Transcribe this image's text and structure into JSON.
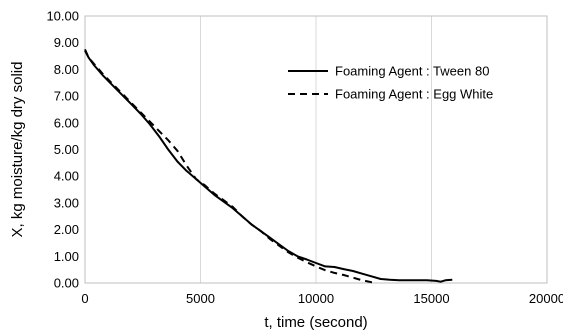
{
  "chart_data": {
    "type": "line",
    "title": "",
    "xlabel": "t, time (second)",
    "ylabel": "X, kg moisture/kg dry solid",
    "xlim": [
      0,
      20000
    ],
    "ylim": [
      0,
      10
    ],
    "x_ticks": [
      "0",
      "5000",
      "10000",
      "15000",
      "20000"
    ],
    "y_ticks": [
      "0.00",
      "1.00",
      "2.00",
      "3.00",
      "4.00",
      "5.00",
      "6.00",
      "7.00",
      "8.00",
      "9.00",
      "10.00"
    ],
    "grid": "vertical",
    "legend_position": "top-right",
    "series": [
      {
        "name": "Foaming Agent : Tween 80",
        "style": "solid",
        "color": "#000000",
        "x": [
          0,
          150,
          400,
          800,
          1200,
          1600,
          2000,
          2400,
          2800,
          3200,
          3600,
          4000,
          4400,
          4800,
          5200,
          5600,
          6000,
          6400,
          6800,
          7200,
          7600,
          8000,
          8400,
          8800,
          9200,
          9600,
          10000,
          10400,
          10800,
          11200,
          11600,
          12000,
          12400,
          12800,
          13200,
          13600,
          14000,
          14400,
          14800,
          15200,
          15400,
          15600,
          15900
        ],
        "y": [
          8.7,
          8.45,
          8.15,
          7.75,
          7.4,
          7.05,
          6.7,
          6.35,
          5.95,
          5.5,
          5.0,
          4.55,
          4.2,
          3.9,
          3.6,
          3.3,
          3.05,
          2.8,
          2.5,
          2.2,
          1.95,
          1.7,
          1.45,
          1.2,
          1.0,
          0.88,
          0.75,
          0.62,
          0.6,
          0.52,
          0.45,
          0.35,
          0.25,
          0.15,
          0.12,
          0.1,
          0.1,
          0.1,
          0.1,
          0.08,
          0.05,
          0.1,
          0.12
        ]
      },
      {
        "name": "Foaming Agent : Egg White",
        "style": "dashed",
        "color": "#000000",
        "x": [
          0,
          150,
          400,
          800,
          1200,
          1600,
          2000,
          2400,
          2800,
          3200,
          3600,
          4000,
          4400,
          4800,
          5200,
          5600,
          6000,
          6400,
          6800,
          7200,
          7600,
          8000,
          8400,
          8800,
          9200,
          9600,
          10000,
          10400,
          10800,
          11200,
          11600,
          12000,
          12400,
          12600
        ],
        "y": [
          8.75,
          8.45,
          8.2,
          7.8,
          7.45,
          7.1,
          6.75,
          6.4,
          6.05,
          5.7,
          5.35,
          4.95,
          4.4,
          3.9,
          3.65,
          3.35,
          3.1,
          2.85,
          2.5,
          2.2,
          1.95,
          1.65,
          1.4,
          1.15,
          0.95,
          0.78,
          0.62,
          0.48,
          0.38,
          0.3,
          0.2,
          0.1,
          0.03,
          0.02
        ]
      }
    ]
  }
}
